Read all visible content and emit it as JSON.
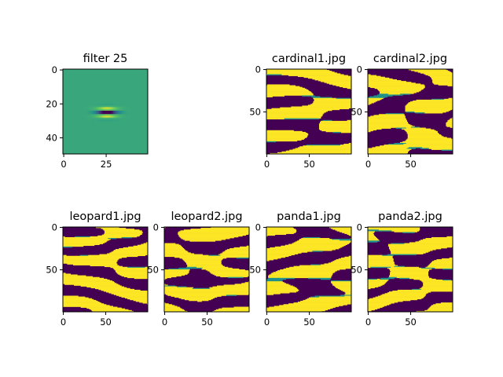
{
  "chart_data": [
    {
      "type": "heatmap",
      "title": "filter 25",
      "colormap": "viridis",
      "pattern": "gabor",
      "xlim": [
        0,
        49
      ],
      "ylim": [
        49,
        0
      ],
      "xticks": [
        0,
        25
      ],
      "yticks": [
        0,
        20,
        40
      ]
    },
    {
      "type": "heatmap",
      "title": "cardinal1.jpg",
      "colormap": "viridis",
      "pattern": "binary-response",
      "xlim": [
        0,
        99
      ],
      "ylim": [
        99,
        0
      ],
      "xticks": [
        0,
        50
      ],
      "yticks": [
        0,
        50
      ]
    },
    {
      "type": "heatmap",
      "title": "cardinal2.jpg",
      "colormap": "viridis",
      "pattern": "binary-response",
      "xlim": [
        0,
        99
      ],
      "ylim": [
        99,
        0
      ],
      "xticks": [
        0,
        50
      ],
      "yticks": [
        0,
        50
      ]
    },
    {
      "type": "heatmap",
      "title": "leopard1.jpg",
      "colormap": "viridis",
      "pattern": "binary-response",
      "xlim": [
        0,
        99
      ],
      "ylim": [
        99,
        0
      ],
      "xticks": [
        0,
        50
      ],
      "yticks": [
        0,
        50
      ]
    },
    {
      "type": "heatmap",
      "title": "leopard2.jpg",
      "colormap": "viridis",
      "pattern": "binary-response",
      "xlim": [
        0,
        99
      ],
      "ylim": [
        99,
        0
      ],
      "xticks": [
        0,
        50
      ],
      "yticks": [
        0,
        50
      ]
    },
    {
      "type": "heatmap",
      "title": "panda1.jpg",
      "colormap": "viridis",
      "pattern": "binary-response",
      "xlim": [
        0,
        99
      ],
      "ylim": [
        99,
        0
      ],
      "xticks": [
        0,
        50
      ],
      "yticks": [
        0,
        50
      ]
    },
    {
      "type": "heatmap",
      "title": "panda2.jpg",
      "colormap": "viridis",
      "pattern": "binary-response",
      "xlim": [
        0,
        99
      ],
      "ylim": [
        99,
        0
      ],
      "xticks": [
        0,
        50
      ],
      "yticks": [
        0,
        50
      ]
    }
  ],
  "colors": {
    "viridis_low": "#440154",
    "viridis_mid": "#21918c",
    "viridis_high": "#fde725",
    "filter_background": "#4ac16d"
  }
}
